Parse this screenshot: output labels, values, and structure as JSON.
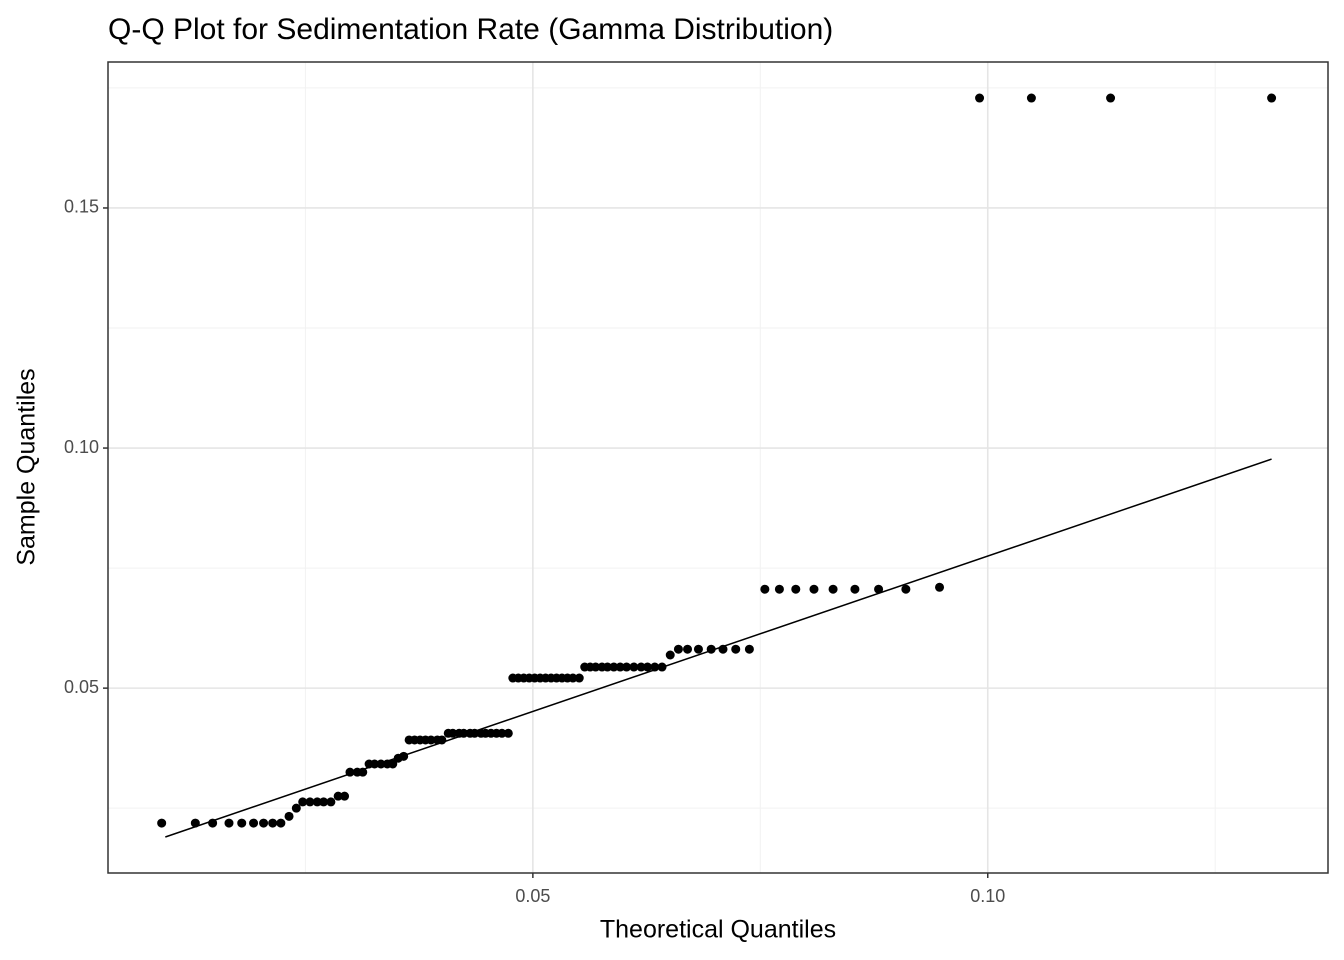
{
  "chart_data": {
    "type": "scatter",
    "title": "Q-Q Plot for Sedimentation Rate (Gamma Distribution)",
    "x_label": "Theoretical Quantiles",
    "y_label": "Sample Quantiles",
    "xlim": [
      0.0033,
      0.1374
    ],
    "ylim": [
      0.0115,
      0.1804
    ],
    "xticks": [
      0.05,
      {
        "value": 0.1,
        "label": "0.10"
      }
    ],
    "yticks": [
      0.05,
      {
        "value": 0.1,
        "label": "0.10"
      },
      0.15
    ],
    "xminor": [
      0.025,
      0.075,
      0.125
    ],
    "yminor": [
      0.025,
      0.075,
      0.125,
      0.175
    ],
    "grid": true,
    "series": [
      {
        "color": "#000000",
        "x": [
          0.0092,
          0.0129,
          0.0148,
          0.0166,
          0.018,
          0.0193,
          0.0204,
          0.0214,
          0.0223,
          0.0232,
          0.024,
          0.0247,
          0.0255,
          0.0263,
          0.027,
          0.0278,
          0.0286,
          0.0293,
          0.0299,
          0.0307,
          0.0313,
          0.032,
          0.0326,
          0.0333,
          0.034,
          0.0346,
          0.0352,
          0.0358,
          0.0364,
          0.037,
          0.0376,
          0.0382,
          0.0388,
          0.0395,
          0.04,
          0.0407,
          0.0412,
          0.0419,
          0.0424,
          0.0431,
          0.0436,
          0.0443,
          0.0448,
          0.0454,
          0.046,
          0.0466,
          0.0473,
          0.0478,
          0.0484,
          0.049,
          0.0496,
          0.0502,
          0.0508,
          0.0514,
          0.052,
          0.0526,
          0.0532,
          0.0538,
          0.0544,
          0.0551,
          0.0557,
          0.0563,
          0.0569,
          0.0576,
          0.0582,
          0.0589,
          0.0596,
          0.0603,
          0.0611,
          0.0619,
          0.0626,
          0.0634,
          0.0642,
          0.0651,
          0.066,
          0.067,
          0.0682,
          0.0696,
          0.0709,
          0.0723,
          0.0738,
          0.0755,
          0.0771,
          0.0789,
          0.0809,
          0.083,
          0.0854,
          0.088,
          0.091,
          0.0947,
          0.0991,
          0.1048,
          0.1135,
          0.1312
        ],
        "y": [
          0.0219,
          0.0219,
          0.0219,
          0.0219,
          0.0219,
          0.0219,
          0.0219,
          0.0219,
          0.0219,
          0.0233,
          0.025,
          0.0263,
          0.0263,
          0.0263,
          0.0263,
          0.0263,
          0.0275,
          0.0275,
          0.0325,
          0.0325,
          0.0325,
          0.0342,
          0.0342,
          0.0342,
          0.0342,
          0.0342,
          0.0354,
          0.0358,
          0.0392,
          0.0392,
          0.0392,
          0.0392,
          0.0392,
          0.0392,
          0.0392,
          0.0406,
          0.0406,
          0.0406,
          0.0406,
          0.0406,
          0.0406,
          0.0406,
          0.0406,
          0.0406,
          0.0406,
          0.0406,
          0.0406,
          0.0521,
          0.0521,
          0.0521,
          0.0521,
          0.0521,
          0.0521,
          0.0521,
          0.0521,
          0.0521,
          0.0521,
          0.0521,
          0.0521,
          0.0521,
          0.0544,
          0.0544,
          0.0544,
          0.0544,
          0.0544,
          0.0544,
          0.0544,
          0.0544,
          0.0544,
          0.0544,
          0.0544,
          0.0544,
          0.0544,
          0.0569,
          0.0581,
          0.0581,
          0.0581,
          0.0581,
          0.0581,
          0.0581,
          0.0581,
          0.0706,
          0.0706,
          0.0706,
          0.0706,
          0.0706,
          0.0706,
          0.0706,
          0.0706,
          0.071,
          0.1729,
          0.1729,
          0.1729,
          0.1729
        ]
      }
    ],
    "reference_line": {
      "color": "#000000",
      "x": [
        0.0096,
        0.1312
      ],
      "y": [
        0.019,
        0.0977
      ]
    }
  }
}
